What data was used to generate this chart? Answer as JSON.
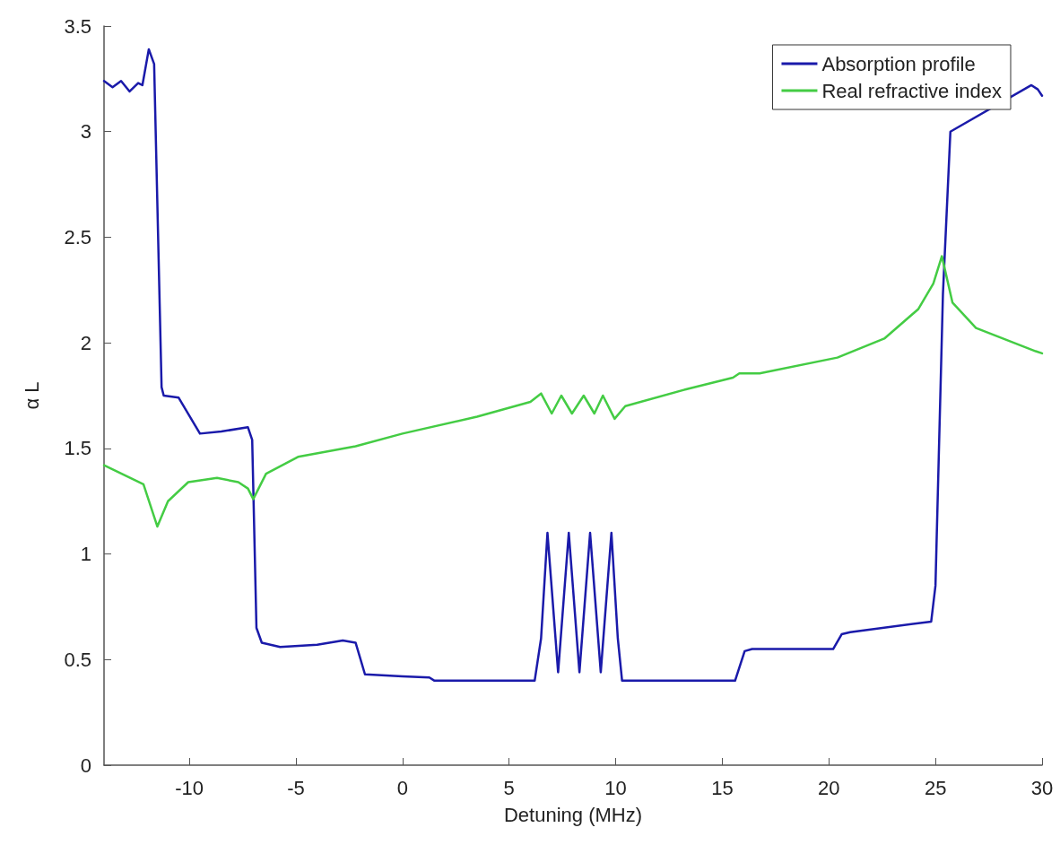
{
  "chart_data": {
    "type": "line",
    "xlabel": "Detuning (MHz)",
    "ylabel": "α L",
    "xlim": [
      -14,
      30
    ],
    "xticks": [
      -10,
      -5,
      0,
      5,
      10,
      15,
      20,
      25,
      30
    ],
    "ylim": [
      0,
      3.5
    ],
    "yticks": [
      0,
      0.5,
      1,
      1.5,
      2,
      2.5,
      3,
      3.5
    ],
    "grid": false,
    "legend": "top right",
    "marker": "none",
    "line_style": "solid",
    "series": [
      {
        "name": "Absorption profile",
        "color": "#1a1aaa",
        "x": [
          -14,
          -13.6,
          -13.2,
          -12.8,
          -12.4,
          -12.2,
          -11.9,
          -11.65,
          -11.3,
          -11.2,
          -10.5,
          -9.5,
          -8.5,
          -7.25,
          -7.05,
          -6.85,
          -6.6,
          -5.74,
          -4,
          -2.8,
          -2.2,
          -1.76,
          0,
          1.26,
          1.5,
          6.2,
          6.5,
          6.8,
          7.3,
          7.8,
          8.3,
          8.8,
          9.3,
          9.8,
          10.1,
          10.3,
          15.6,
          16.05,
          16.4,
          20.2,
          20.6,
          21,
          24.8,
          25.0,
          25.35,
          25.7,
          29.5,
          29.8,
          30
        ],
        "values": [
          3.24,
          3.21,
          3.24,
          3.19,
          3.23,
          3.22,
          3.39,
          3.32,
          1.79,
          1.75,
          1.74,
          1.57,
          1.58,
          1.6,
          1.54,
          0.65,
          0.58,
          0.56,
          0.57,
          0.59,
          0.58,
          0.43,
          0.42,
          0.415,
          0.4,
          0.4,
          0.6,
          1.1,
          0.44,
          1.1,
          0.44,
          1.1,
          0.44,
          1.1,
          0.6,
          0.4,
          0.4,
          0.54,
          0.55,
          0.55,
          0.62,
          0.63,
          0.68,
          0.85,
          2.23,
          3.0,
          3.22,
          3.2,
          3.17
        ]
      },
      {
        "name": "Real refractive index",
        "color": "#44cc44",
        "x": [
          -14,
          -12.15,
          -11.5,
          -11.0,
          -10.05,
          -8.7,
          -7.7,
          -7.25,
          -7.0,
          -6.4,
          -4.9,
          -2.2,
          0,
          3.5,
          6.0,
          6.5,
          7.0,
          7.45,
          7.95,
          8.5,
          9.0,
          9.4,
          9.95,
          10.45,
          13.3,
          15.5,
          15.8,
          16.75,
          20.4,
          22.6,
          24.2,
          24.9,
          25.3,
          25.8,
          26.9,
          29.7,
          30
        ],
        "values": [
          1.42,
          1.33,
          1.13,
          1.25,
          1.34,
          1.36,
          1.34,
          1.31,
          1.26,
          1.38,
          1.46,
          1.51,
          1.57,
          1.65,
          1.72,
          1.76,
          1.665,
          1.75,
          1.665,
          1.75,
          1.665,
          1.75,
          1.64,
          1.7,
          1.78,
          1.835,
          1.855,
          1.855,
          1.93,
          2.02,
          2.16,
          2.28,
          2.41,
          2.19,
          2.07,
          1.96,
          1.95
        ]
      }
    ]
  }
}
